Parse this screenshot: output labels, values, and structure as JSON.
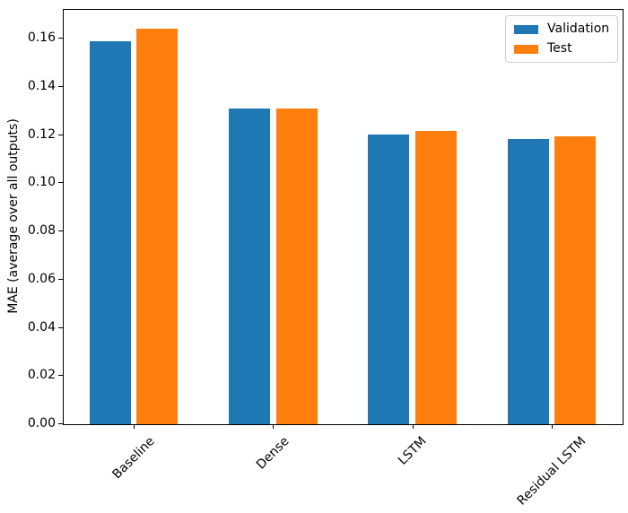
{
  "chart_data": {
    "type": "bar",
    "title": "",
    "categories": [
      "Baseline",
      "Dense",
      "LSTM",
      "Residual LSTM"
    ],
    "series": [
      {
        "name": "Validation",
        "color": "#1f77b4",
        "values": [
          0.159,
          0.131,
          0.1203,
          0.1185
        ]
      },
      {
        "name": "Test",
        "color": "#ff7f0e",
        "values": [
          0.1642,
          0.131,
          0.1217,
          0.1195
        ]
      }
    ],
    "xlabel": "",
    "ylabel": "MAE (average over all outputs)",
    "ylim": [
      0,
      0.172
    ],
    "yticks": [
      0.0,
      0.02,
      0.04,
      0.06,
      0.08,
      0.1,
      0.12,
      0.14,
      0.16
    ],
    "ytick_labels": [
      "0.00",
      "0.02",
      "0.04",
      "0.06",
      "0.08",
      "0.10",
      "0.12",
      "0.14",
      "0.16"
    ],
    "xtick_rotation": 45,
    "grid": false,
    "legend": {
      "position": "upper right",
      "entries": [
        "Validation",
        "Test"
      ]
    }
  },
  "colors": {
    "spine": "#000000",
    "text": "#000000",
    "legend_border": "#cccccc",
    "background": "#ffffff"
  }
}
